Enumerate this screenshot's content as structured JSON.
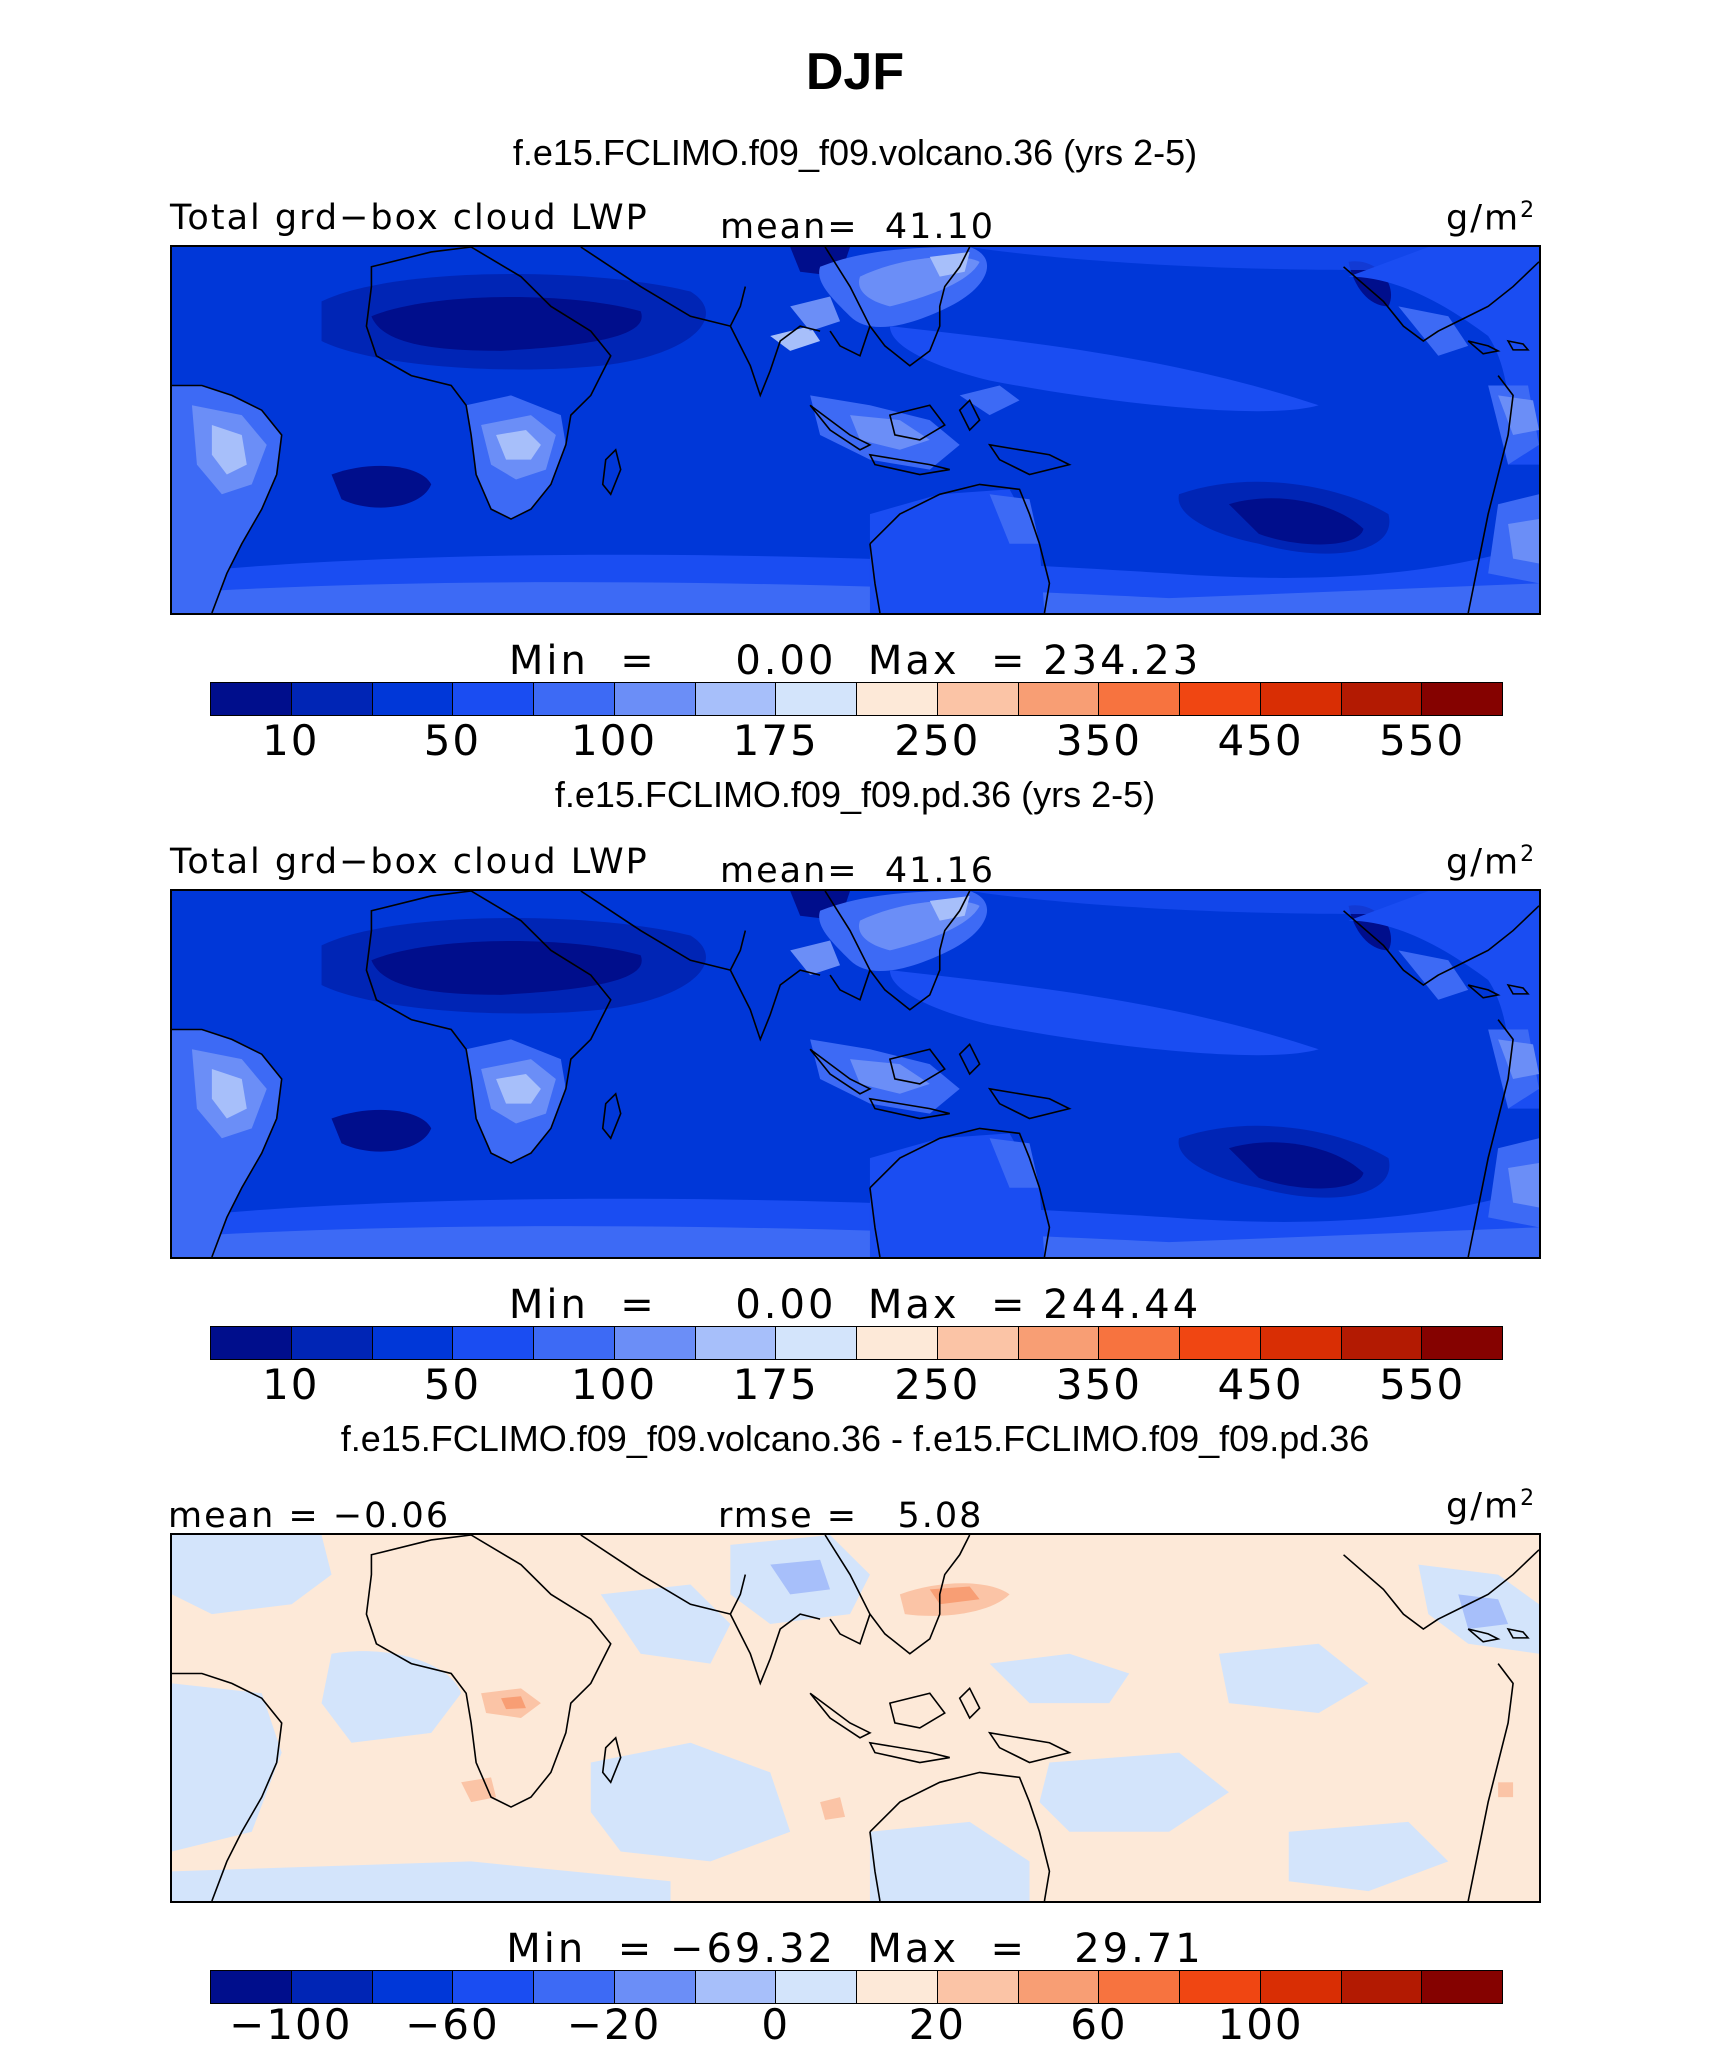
{
  "title": "DJF",
  "colors": [
    "#000e8c",
    "#0025b5",
    "#0037d8",
    "#1a4df2",
    "#3d6af5",
    "#6b8ef7",
    "#a7bffa",
    "#d3e4fb",
    "#fde9d8",
    "#fbc4a6",
    "#f89e74",
    "#f7733f",
    "#f04612",
    "#d92e04",
    "#b31a02",
    "#850200"
  ],
  "panels": [
    {
      "subtitle": "f.e15.FCLIMO.f09_f09.volcano.36 (yrs 2-5)",
      "left_label": "Total grd−box cloud LWP",
      "center_label": "mean=",
      "center_value": "41.10",
      "units": "g/m",
      "units_sup": "2",
      "min_label": "Min  =     0.00",
      "max_label": "Max  = 234.23",
      "min": 0.0,
      "max": 234.23,
      "mean": 41.1,
      "ticks": [
        "10",
        "50",
        "100",
        "175",
        "250",
        "350",
        "450",
        "550"
      ],
      "map_fill": "field-lwp-volcano"
    },
    {
      "subtitle": "f.e15.FCLIMO.f09_f09.pd.36 (yrs 2-5)",
      "left_label": "Total grd−box cloud LWP",
      "center_label": "mean=",
      "center_value": "41.16",
      "units": "g/m",
      "units_sup": "2",
      "min_label": "Min  =     0.00",
      "max_label": "Max  = 244.44",
      "min": 0.0,
      "max": 244.44,
      "mean": 41.16,
      "ticks": [
        "10",
        "50",
        "100",
        "175",
        "250",
        "350",
        "450",
        "550"
      ],
      "map_fill": "field-lwp-pd"
    },
    {
      "subtitle": "f.e15.FCLIMO.f09_f09.volcano.36 - f.e15.FCLIMO.f09_f09.pd.36",
      "left_label": "mean =  −0.06",
      "center_label": "rmse =",
      "center_value": "5.08",
      "units": "g/m",
      "units_sup": "2",
      "min_label": "Min  = −69.32",
      "max_label": "Max  =   29.71",
      "min": -69.32,
      "max": 29.71,
      "mean": -0.06,
      "rmse": 5.08,
      "ticks": [
        "−100",
        "−60",
        "−20",
        "0",
        "20",
        "60",
        "100"
      ],
      "map_fill": "field-lwp-diff"
    }
  ]
}
